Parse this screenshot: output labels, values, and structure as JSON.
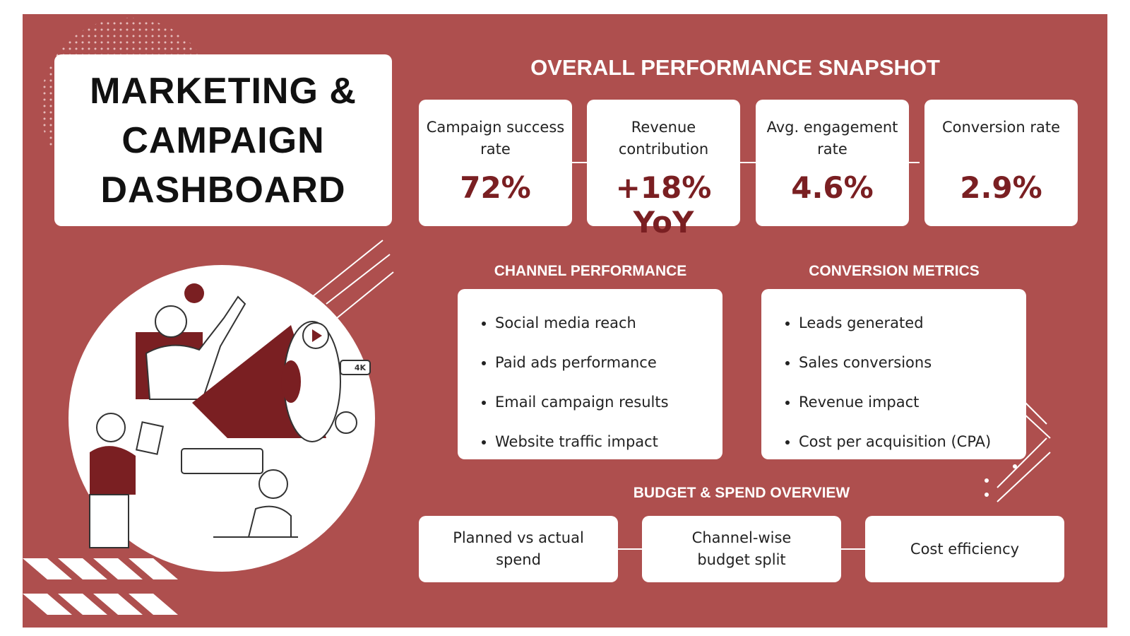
{
  "header": {
    "title_lines": [
      "MARKETING &",
      "CAMPAIGN",
      "DASHBOARD"
    ]
  },
  "snapshot": {
    "title": "OVERALL PERFORMANCE SNAPSHOT",
    "cards": [
      {
        "label": "Campaign success rate",
        "value": "72%"
      },
      {
        "label": "Revenue contribution",
        "value": "+18% YoY"
      },
      {
        "label": "Avg. engagement rate",
        "value": "4.6%"
      },
      {
        "label": "Conversion rate",
        "value": "2.9%"
      }
    ]
  },
  "channel": {
    "title": "CHANNEL PERFORMANCE",
    "items": [
      "Social media reach",
      "Paid ads performance",
      "Email campaign results",
      "Website traffic impact"
    ]
  },
  "conversion": {
    "title": "CONVERSION METRICS",
    "items": [
      "Leads generated",
      "Sales conversions",
      "Revenue impact",
      "Cost per acquisition (CPA)"
    ]
  },
  "budget": {
    "title": "BUDGET & SPEND OVERVIEW",
    "items": [
      "Planned vs actual spend",
      "Channel-wise budget split",
      "Cost efficiency"
    ]
  },
  "illustration": {
    "badge": "4K"
  }
}
